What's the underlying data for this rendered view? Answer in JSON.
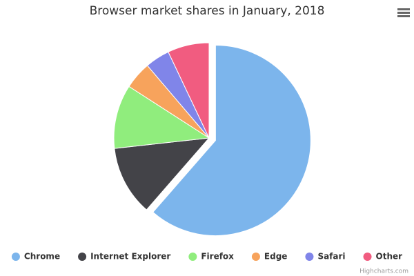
{
  "chart_data": {
    "type": "pie",
    "title": "Browser market shares in January, 2018",
    "categories": [
      "Chrome",
      "Internet Explorer",
      "Firefox",
      "Edge",
      "Safari",
      "Other"
    ],
    "values": [
      61.41,
      11.84,
      10.85,
      4.67,
      4.18,
      7.05
    ],
    "colors": [
      "#7cb5ec",
      "#434348",
      "#90ed7d",
      "#f7a35c",
      "#8085e9",
      "#f15c80"
    ],
    "sliced": [
      true,
      false,
      false,
      false,
      false,
      false
    ],
    "legend": "bottom",
    "credits": "Highcharts.com"
  }
}
